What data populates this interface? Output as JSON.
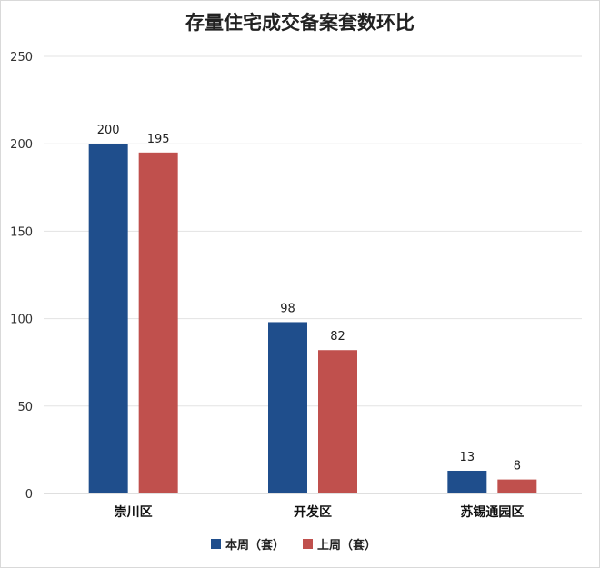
{
  "chart_data": {
    "type": "bar",
    "title": "存量住宅成交备案套数环比",
    "categories": [
      "崇川区",
      "开发区",
      "苏锡通园区"
    ],
    "series": [
      {
        "name": "本周（套）",
        "values": [
          200,
          98,
          13
        ],
        "color": "#1f4e8c"
      },
      {
        "name": "上周（套）",
        "values": [
          195,
          82,
          8
        ],
        "color": "#c0504d"
      }
    ],
    "ylim": [
      0,
      250
    ],
    "yticks": [
      0,
      50,
      100,
      150,
      200,
      250
    ],
    "grid": true,
    "legend": "bottom-center"
  }
}
